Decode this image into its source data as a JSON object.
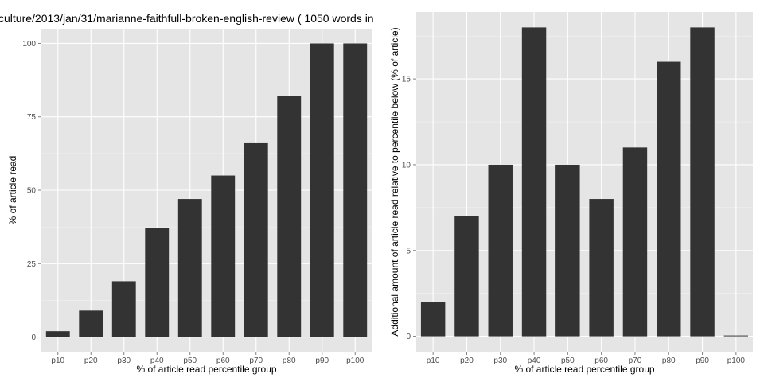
{
  "chart_data": [
    {
      "type": "bar",
      "title": "culture/2013/jan/31/marianne-faithfull-broken-english-review ( 1050 words in",
      "xlabel": "% of article read percentile group",
      "ylabel": "% of article read",
      "categories": [
        "p10",
        "p20",
        "p30",
        "p40",
        "p50",
        "p60",
        "p70",
        "p80",
        "p90",
        "p100"
      ],
      "values": [
        2,
        9,
        19,
        37,
        47,
        55,
        66,
        82,
        100,
        100
      ],
      "ylim": [
        -5,
        105
      ],
      "yticks": [
        0,
        25,
        50,
        75,
        100
      ],
      "grid": true,
      "colors": {
        "bar": "#333333",
        "panel": "#e5e5e5",
        "grid_major": "#ffffff",
        "grid_minor": "#f2f2f2"
      }
    },
    {
      "type": "bar",
      "title": "",
      "xlabel": "% of article read percentile group",
      "ylabel": "Additional amount of article read relative to percentile below (% of article)",
      "categories": [
        "p10",
        "p20",
        "p30",
        "p40",
        "p50",
        "p60",
        "p70",
        "p80",
        "p90",
        "p100"
      ],
      "values": [
        2,
        7,
        10,
        18,
        10,
        8,
        11,
        16,
        18,
        0
      ],
      "ylim": [
        -0.9,
        18.9
      ],
      "yticks": [
        0,
        5,
        10,
        15
      ],
      "grid": true,
      "colors": {
        "bar": "#333333",
        "panel": "#e5e5e5",
        "grid_major": "#ffffff",
        "grid_minor": "#f2f2f2"
      }
    }
  ]
}
